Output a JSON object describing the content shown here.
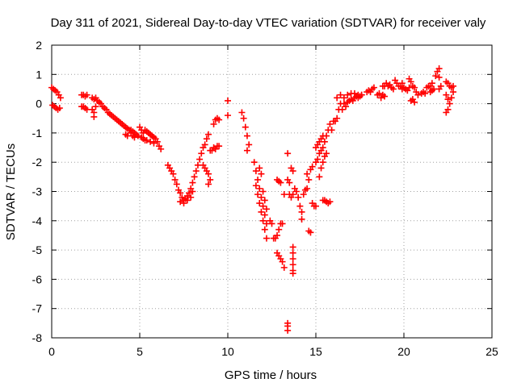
{
  "chart_data": {
    "type": "scatter",
    "title": "Day 311 of 2021, Sidereal Day-to-day VTEC variation (SDTVAR) for receiver valy",
    "xlabel": "GPS time / hours",
    "ylabel": "SDTVAR / TECUs",
    "xlim": [
      0,
      25
    ],
    "ylim": [
      -8,
      2
    ],
    "xticks": [
      0,
      5,
      10,
      15,
      20,
      25
    ],
    "yticks": [
      -8,
      -7,
      -6,
      -5,
      -4,
      -3,
      -2,
      -1,
      0,
      1,
      2
    ],
    "grid": true,
    "marker": "+",
    "color": "#ff0000",
    "series": [
      {
        "name": "valy",
        "points": [
          [
            0.0,
            0.55
          ],
          [
            0.1,
            0.5
          ],
          [
            0.2,
            0.45
          ],
          [
            0.3,
            0.4
          ],
          [
            0.4,
            0.3
          ],
          [
            0.5,
            0.2
          ],
          [
            0.05,
            -0.05
          ],
          [
            0.15,
            -0.1
          ],
          [
            0.25,
            -0.15
          ],
          [
            0.35,
            -0.2
          ],
          [
            0.45,
            -0.15
          ],
          [
            1.7,
            0.3
          ],
          [
            1.8,
            0.3
          ],
          [
            1.9,
            0.25
          ],
          [
            2.0,
            0.3
          ],
          [
            1.7,
            -0.1
          ],
          [
            1.8,
            -0.1
          ],
          [
            1.9,
            -0.15
          ],
          [
            2.0,
            -0.2
          ],
          [
            2.3,
            0.2
          ],
          [
            2.4,
            0.15
          ],
          [
            2.5,
            0.2
          ],
          [
            2.3,
            -0.2
          ],
          [
            2.4,
            -0.3
          ],
          [
            2.5,
            -0.1
          ],
          [
            2.4,
            -0.45
          ],
          [
            2.6,
            0.1
          ],
          [
            2.7,
            0.05
          ],
          [
            2.8,
            0.0
          ],
          [
            2.9,
            -0.1
          ],
          [
            3.0,
            -0.15
          ],
          [
            3.1,
            -0.2
          ],
          [
            3.2,
            -0.3
          ],
          [
            3.3,
            -0.35
          ],
          [
            3.4,
            -0.4
          ],
          [
            3.5,
            -0.45
          ],
          [
            3.6,
            -0.5
          ],
          [
            3.7,
            -0.55
          ],
          [
            3.8,
            -0.6
          ],
          [
            3.9,
            -0.65
          ],
          [
            4.0,
            -0.7
          ],
          [
            4.1,
            -0.75
          ],
          [
            4.2,
            -0.8
          ],
          [
            4.3,
            -0.85
          ],
          [
            4.4,
            -0.9
          ],
          [
            4.5,
            -0.9
          ],
          [
            4.6,
            -0.95
          ],
          [
            4.7,
            -1.0
          ],
          [
            4.8,
            -1.05
          ],
          [
            4.9,
            -1.1
          ],
          [
            5.0,
            -0.8
          ],
          [
            5.1,
            -0.9
          ],
          [
            5.2,
            -1.0
          ],
          [
            5.3,
            -0.9
          ],
          [
            5.4,
            -0.95
          ],
          [
            5.5,
            -1.0
          ],
          [
            5.6,
            -1.05
          ],
          [
            5.7,
            -1.1
          ],
          [
            5.8,
            -1.15
          ],
          [
            5.9,
            -1.2
          ],
          [
            6.0,
            -1.3
          ],
          [
            6.1,
            -1.45
          ],
          [
            6.2,
            -1.55
          ],
          [
            4.5,
            -1.0
          ],
          [
            4.6,
            -1.1
          ],
          [
            4.7,
            -1.15
          ],
          [
            4.2,
            -1.05
          ],
          [
            4.3,
            -1.1
          ],
          [
            5.1,
            -1.15
          ],
          [
            5.2,
            -1.2
          ],
          [
            5.3,
            -1.25
          ],
          [
            5.4,
            -1.25
          ],
          [
            5.6,
            -1.3
          ],
          [
            5.8,
            -1.35
          ],
          [
            6.6,
            -2.1
          ],
          [
            6.7,
            -2.2
          ],
          [
            6.8,
            -2.3
          ],
          [
            6.9,
            -2.4
          ],
          [
            7.0,
            -2.6
          ],
          [
            7.1,
            -2.75
          ],
          [
            7.2,
            -2.95
          ],
          [
            7.3,
            -3.05
          ],
          [
            7.4,
            -3.2
          ],
          [
            7.5,
            -3.3
          ],
          [
            7.6,
            -3.25
          ],
          [
            7.7,
            -3.15
          ],
          [
            7.8,
            -3.05
          ],
          [
            7.9,
            -2.9
          ],
          [
            8.0,
            -2.7
          ],
          [
            8.1,
            -2.5
          ],
          [
            8.2,
            -2.3
          ],
          [
            8.3,
            -2.1
          ],
          [
            8.4,
            -1.9
          ],
          [
            8.5,
            -1.7
          ],
          [
            8.6,
            -1.5
          ],
          [
            8.7,
            -1.4
          ],
          [
            8.8,
            -1.2
          ],
          [
            8.9,
            -1.05
          ],
          [
            7.3,
            -3.35
          ],
          [
            7.5,
            -3.4
          ],
          [
            7.7,
            -3.3
          ],
          [
            7.9,
            -3.2
          ],
          [
            8.0,
            -3.0
          ],
          [
            8.6,
            -2.1
          ],
          [
            8.7,
            -2.2
          ],
          [
            8.8,
            -2.3
          ],
          [
            8.9,
            -2.4
          ],
          [
            9.0,
            -2.6
          ],
          [
            8.9,
            -2.75
          ],
          [
            9.0,
            -1.6
          ],
          [
            9.1,
            -1.6
          ],
          [
            9.2,
            -1.5
          ],
          [
            9.3,
            -1.55
          ],
          [
            9.4,
            -1.45
          ],
          [
            9.5,
            -1.45
          ],
          [
            9.2,
            -0.7
          ],
          [
            9.3,
            -0.55
          ],
          [
            9.4,
            -0.5
          ],
          [
            9.5,
            -0.55
          ],
          [
            10.0,
            0.1
          ],
          [
            10.0,
            -0.4
          ],
          [
            10.8,
            -0.3
          ],
          [
            10.9,
            -0.5
          ],
          [
            11.0,
            -0.8
          ],
          [
            11.1,
            -1.1
          ],
          [
            11.2,
            -1.4
          ],
          [
            11.1,
            -1.6
          ],
          [
            11.5,
            -2.0
          ],
          [
            11.6,
            -2.3
          ],
          [
            11.7,
            -2.6
          ],
          [
            11.8,
            -2.9
          ],
          [
            11.9,
            -3.2
          ],
          [
            12.0,
            -3.5
          ],
          [
            12.1,
            -3.8
          ],
          [
            12.2,
            -4.1
          ],
          [
            11.6,
            -2.8
          ],
          [
            11.7,
            -3.1
          ],
          [
            11.8,
            -3.4
          ],
          [
            11.9,
            -3.7
          ],
          [
            12.0,
            -4.0
          ],
          [
            12.1,
            -4.3
          ],
          [
            12.2,
            -4.6
          ],
          [
            11.8,
            -2.2
          ],
          [
            11.9,
            -2.4
          ],
          [
            12.0,
            -3.0
          ],
          [
            12.1,
            -3.3
          ],
          [
            12.2,
            -3.6
          ],
          [
            12.4,
            -4.0
          ],
          [
            12.5,
            -4.1
          ],
          [
            12.6,
            -4.6
          ],
          [
            12.7,
            -4.6
          ],
          [
            12.8,
            -4.5
          ],
          [
            12.9,
            -4.3
          ],
          [
            13.0,
            -4.1
          ],
          [
            13.1,
            -4.1
          ],
          [
            12.8,
            -5.1
          ],
          [
            12.9,
            -5.2
          ],
          [
            13.0,
            -5.3
          ],
          [
            13.1,
            -5.4
          ],
          [
            13.2,
            -5.6
          ],
          [
            12.8,
            -2.6
          ],
          [
            12.9,
            -2.65
          ],
          [
            13.0,
            -2.7
          ],
          [
            13.2,
            -3.1
          ],
          [
            13.4,
            -1.7
          ],
          [
            13.4,
            -2.6
          ],
          [
            13.5,
            -2.7
          ],
          [
            13.5,
            -3.1
          ],
          [
            13.6,
            -3.2
          ],
          [
            13.7,
            -3.1
          ],
          [
            13.8,
            -2.9
          ],
          [
            13.7,
            -2.3
          ],
          [
            13.6,
            -2.2
          ],
          [
            13.7,
            -4.9
          ],
          [
            13.7,
            -5.1
          ],
          [
            13.7,
            -5.3
          ],
          [
            13.7,
            -5.5
          ],
          [
            13.7,
            -5.7
          ],
          [
            13.7,
            -5.8
          ],
          [
            13.4,
            -7.5
          ],
          [
            13.4,
            -7.6
          ],
          [
            13.4,
            -7.75
          ],
          [
            13.9,
            -3.0
          ],
          [
            14.0,
            -3.2
          ],
          [
            14.1,
            -3.5
          ],
          [
            14.2,
            -3.7
          ],
          [
            14.2,
            -3.95
          ],
          [
            14.0,
            -3.2
          ],
          [
            14.3,
            -3.1
          ],
          [
            14.4,
            -2.95
          ],
          [
            14.5,
            -2.9
          ],
          [
            14.6,
            -2.6
          ],
          [
            14.5,
            -2.4
          ],
          [
            14.7,
            -2.25
          ],
          [
            14.8,
            -2.15
          ],
          [
            14.8,
            -3.4
          ],
          [
            14.9,
            -3.5
          ],
          [
            15.0,
            -3.5
          ],
          [
            14.6,
            -4.35
          ],
          [
            14.7,
            -4.4
          ],
          [
            15.0,
            -1.5
          ],
          [
            15.1,
            -1.4
          ],
          [
            15.2,
            -1.3
          ],
          [
            15.3,
            -1.2
          ],
          [
            15.4,
            -1.1
          ],
          [
            15.0,
            -2.0
          ],
          [
            15.1,
            -1.9
          ],
          [
            15.2,
            -1.7
          ],
          [
            15.3,
            -1.6
          ],
          [
            15.4,
            -1.5
          ],
          [
            15.5,
            -1.3
          ],
          [
            15.6,
            -1.1
          ],
          [
            15.7,
            -0.9
          ],
          [
            15.8,
            -0.7
          ],
          [
            15.4,
            -3.3
          ],
          [
            15.5,
            -3.3
          ],
          [
            15.6,
            -3.35
          ],
          [
            15.7,
            -3.4
          ],
          [
            15.8,
            -3.35
          ],
          [
            15.2,
            -2.5
          ],
          [
            15.3,
            -2.2
          ],
          [
            15.4,
            -2.0
          ],
          [
            15.5,
            -1.8
          ],
          [
            15.6,
            -1.7
          ],
          [
            15.9,
            -0.9
          ],
          [
            16.0,
            -0.6
          ],
          [
            16.1,
            -0.6
          ],
          [
            16.2,
            -0.5
          ],
          [
            16.3,
            -0.2
          ],
          [
            16.4,
            0.0
          ],
          [
            16.5,
            -0.2
          ],
          [
            16.6,
            0.0
          ],
          [
            16.7,
            -0.1
          ],
          [
            16.8,
            0.05
          ],
          [
            16.9,
            0.1
          ],
          [
            17.0,
            0.15
          ],
          [
            17.1,
            0.1
          ],
          [
            17.2,
            0.2
          ],
          [
            17.3,
            0.25
          ],
          [
            17.4,
            0.2
          ],
          [
            17.5,
            0.25
          ],
          [
            17.6,
            0.3
          ],
          [
            16.2,
            0.2
          ],
          [
            16.4,
            0.3
          ],
          [
            16.6,
            0.2
          ],
          [
            16.8,
            0.3
          ],
          [
            17.0,
            0.35
          ],
          [
            17.2,
            0.35
          ],
          [
            17.4,
            0.3
          ],
          [
            17.6,
            0.3
          ],
          [
            17.9,
            0.4
          ],
          [
            18.0,
            0.45
          ],
          [
            18.1,
            0.4
          ],
          [
            18.2,
            0.5
          ],
          [
            18.3,
            0.55
          ],
          [
            18.5,
            0.3
          ],
          [
            18.6,
            0.35
          ],
          [
            18.8,
            0.6
          ],
          [
            18.9,
            0.6
          ],
          [
            19.0,
            0.7
          ],
          [
            19.1,
            0.6
          ],
          [
            19.2,
            0.65
          ],
          [
            19.3,
            0.55
          ],
          [
            19.4,
            0.5
          ],
          [
            18.7,
            0.2
          ],
          [
            18.8,
            0.3
          ],
          [
            18.9,
            0.25
          ],
          [
            19.6,
            0.7
          ],
          [
            19.7,
            0.6
          ],
          [
            19.8,
            0.6
          ],
          [
            19.9,
            0.5
          ],
          [
            20.0,
            0.55
          ],
          [
            20.1,
            0.5
          ],
          [
            20.2,
            0.45
          ],
          [
            20.3,
            0.55
          ],
          [
            19.5,
            0.8
          ],
          [
            19.9,
            0.7
          ],
          [
            20.3,
            0.85
          ],
          [
            20.4,
            0.75
          ],
          [
            20.5,
            0.6
          ],
          [
            20.6,
            0.55
          ],
          [
            20.7,
            0.4
          ],
          [
            20.8,
            0.3
          ],
          [
            20.4,
            0.1
          ],
          [
            20.5,
            0.15
          ],
          [
            20.6,
            0.05
          ],
          [
            21.0,
            0.35
          ],
          [
            21.1,
            0.4
          ],
          [
            21.2,
            0.35
          ],
          [
            21.3,
            0.55
          ],
          [
            21.4,
            0.6
          ],
          [
            21.5,
            0.4
          ],
          [
            21.6,
            0.45
          ],
          [
            21.7,
            0.5
          ],
          [
            21.5,
            0.6
          ],
          [
            21.6,
            0.7
          ],
          [
            21.8,
            0.95
          ],
          [
            21.9,
            1.1
          ],
          [
            22.0,
            1.2
          ],
          [
            22.0,
            0.9
          ],
          [
            22.1,
            0.6
          ],
          [
            22.0,
            0.5
          ],
          [
            22.4,
            0.75
          ],
          [
            22.5,
            0.7
          ],
          [
            22.6,
            0.6
          ],
          [
            22.7,
            0.55
          ],
          [
            22.8,
            0.6
          ],
          [
            22.4,
            0.3
          ],
          [
            22.5,
            0.15
          ],
          [
            22.6,
            0.0
          ],
          [
            22.7,
            0.2
          ],
          [
            22.8,
            0.4
          ],
          [
            22.5,
            -0.2
          ],
          [
            22.4,
            -0.3
          ]
        ]
      }
    ]
  }
}
